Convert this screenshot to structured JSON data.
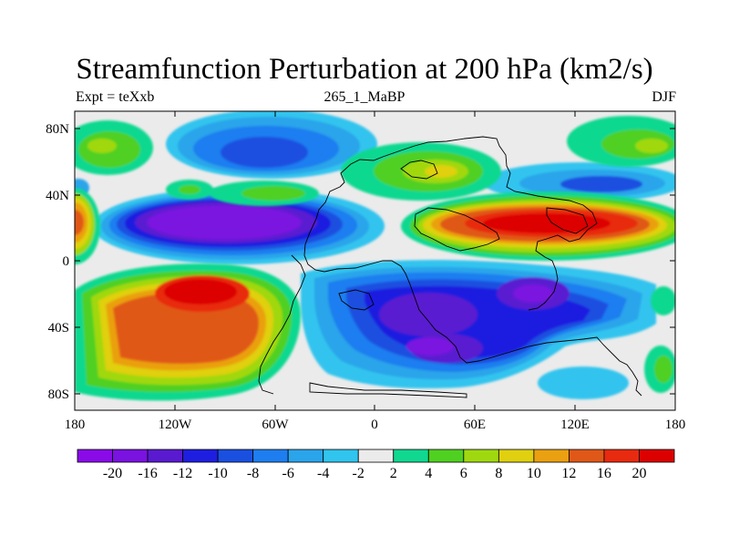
{
  "title": "Streamfunction Perturbation at 200 hPa (km2/s)",
  "left_subtitle": "Expt = teXxb",
  "center_subtitle": "265_1_MaBP",
  "right_subtitle": "DJF",
  "y_tick_labels": [
    "80N",
    "40N",
    "0",
    "40S",
    "80S"
  ],
  "x_tick_labels": [
    "180",
    "120W",
    "60W",
    "0",
    "60E",
    "120E",
    "180"
  ],
  "colorbar": {
    "labels": [
      "-20",
      "-16",
      "-12",
      "-10",
      "-8",
      "-6",
      "-4",
      "-2",
      "2",
      "4",
      "6",
      "8",
      "10",
      "12",
      "16",
      "20"
    ],
    "colors": [
      "#8a0ae8",
      "#7a12e0",
      "#5a1ad0",
      "#1e1ee0",
      "#1a50e0",
      "#1e7ef0",
      "#2aa4ea",
      "#30c4ee",
      "#ebebeb",
      "#10d890",
      "#50d020",
      "#a0d810",
      "#e0d010",
      "#eaa010",
      "#e05818",
      "#e82a10",
      "#dd0000"
    ]
  }
}
